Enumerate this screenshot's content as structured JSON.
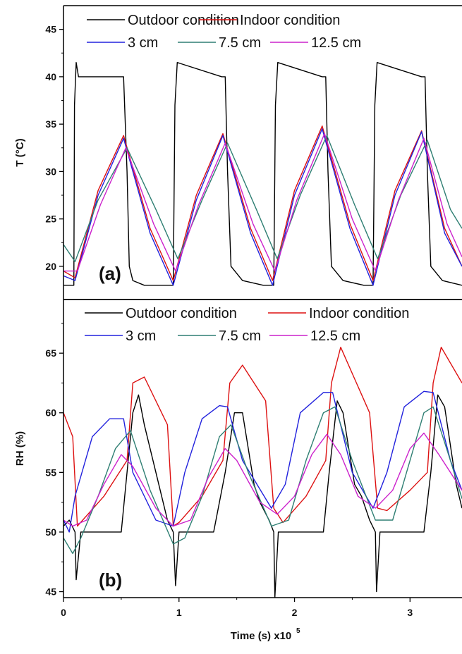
{
  "chart_data": [
    {
      "type": "line",
      "panel_label": "(a)",
      "ylabel": "T (°C)",
      "xlim": [
        0,
        3.45
      ],
      "ylim": [
        16.5,
        47.5
      ],
      "yticks": [
        20,
        25,
        30,
        35,
        40,
        45
      ],
      "ytick_labels": [
        "20",
        "25",
        "30",
        "35",
        "40",
        "45"
      ],
      "legend_placement": "top",
      "series": [
        {
          "name": "Outdoor condition",
          "color": "#000000",
          "x": [
            0,
            0.09,
            0.095,
            0.11,
            0.13,
            0.52,
            0.55,
            0.57,
            0.6,
            0.7,
            0.87,
            0.95,
            0.965,
            0.985,
            1.37,
            1.4,
            1.42,
            1.45,
            1.55,
            1.73,
            1.82,
            1.835,
            1.855,
            2.24,
            2.27,
            2.29,
            2.32,
            2.42,
            2.6,
            2.68,
            2.695,
            2.715,
            3.1,
            3.13,
            3.15,
            3.18,
            3.28,
            3.45
          ],
          "y": [
            18,
            18,
            37,
            41.5,
            40,
            40,
            30,
            20,
            18.5,
            18,
            18,
            18,
            37,
            41.5,
            40,
            40,
            30,
            20,
            18.5,
            18,
            18,
            37,
            41.5,
            40,
            40,
            30,
            20,
            18.5,
            18,
            18,
            37,
            41.5,
            40,
            40,
            30,
            20,
            18.5,
            18
          ]
        },
        {
          "name": "Indoor condition",
          "color": "#dd1111",
          "x": [
            0,
            0.1,
            0.3,
            0.52,
            0.75,
            0.95,
            1.15,
            1.38,
            1.62,
            1.81,
            2.0,
            2.24,
            2.48,
            2.68,
            2.87,
            3.1,
            3.3,
            3.45
          ],
          "y": [
            19.5,
            18.8,
            28,
            33.8,
            24,
            18.5,
            27.5,
            34,
            24,
            18.5,
            28,
            34.8,
            24.5,
            18.5,
            28,
            34.3,
            24,
            20
          ]
        },
        {
          "name": "3 cm",
          "color": "#2222dd",
          "x": [
            0,
            0.1,
            0.3,
            0.52,
            0.75,
            0.95,
            1.15,
            1.38,
            1.62,
            1.81,
            2.0,
            2.24,
            2.48,
            2.68,
            2.87,
            3.1,
            3.3,
            3.45
          ],
          "y": [
            19,
            18.5,
            27.5,
            33.5,
            23.5,
            18,
            27,
            33.8,
            23.5,
            18,
            27.5,
            34.5,
            24,
            18,
            27.5,
            34.2,
            23.5,
            20
          ]
        },
        {
          "name": "7.5 cm",
          "color": "#2f7f73",
          "x": [
            0,
            0.1,
            0.3,
            0.55,
            0.8,
            0.99,
            1.2,
            1.42,
            1.67,
            1.85,
            2.05,
            2.28,
            2.52,
            2.72,
            2.92,
            3.15,
            3.35,
            3.45
          ],
          "y": [
            22.3,
            20.5,
            27,
            32.5,
            26,
            20.8,
            27,
            33,
            26,
            20.8,
            27.5,
            33.8,
            26.5,
            20.8,
            27.5,
            33.3,
            26,
            24
          ]
        },
        {
          "name": "12.5 cm",
          "color": "#cc22cc",
          "x": [
            0,
            0.12,
            0.32,
            0.54,
            0.78,
            0.97,
            1.17,
            1.4,
            1.64,
            1.83,
            2.02,
            2.26,
            2.5,
            2.7,
            2.9,
            3.12,
            3.32,
            3.45
          ],
          "y": [
            19.5,
            19.5,
            26.5,
            32.5,
            24.5,
            19.5,
            26.5,
            33,
            24.5,
            19.5,
            27,
            34,
            25,
            19.5,
            27,
            33.5,
            24.5,
            21
          ]
        }
      ]
    },
    {
      "type": "line",
      "panel_label": "(b)",
      "ylabel": "RH (%)",
      "xlabel": "Time (s) x10",
      "xlabel_exp": "5",
      "xlim": [
        0,
        3.45
      ],
      "xticks": [
        0,
        1,
        2,
        3
      ],
      "xtick_labels": [
        "0",
        "1",
        "2",
        "3"
      ],
      "ylim": [
        44.5,
        69.5
      ],
      "yticks": [
        45,
        50,
        55,
        60,
        65
      ],
      "ytick_labels": [
        "45",
        "50",
        "55",
        "60",
        "65"
      ],
      "legend_placement": "top",
      "series": [
        {
          "name": "Outdoor condition",
          "color": "#000000",
          "x": [
            0,
            0.05,
            0.1,
            0.11,
            0.15,
            0.5,
            0.55,
            0.6,
            0.65,
            0.7,
            0.8,
            0.85,
            0.9,
            0.95,
            0.97,
            1.0,
            1.3,
            1.4,
            1.48,
            1.55,
            1.65,
            1.7,
            1.78,
            1.82,
            1.83,
            1.86,
            2.25,
            2.3,
            2.37,
            2.42,
            2.52,
            2.58,
            2.65,
            2.7,
            2.71,
            2.74,
            3.12,
            3.18,
            3.24,
            3.3,
            3.4,
            3.45
          ],
          "y": [
            50.5,
            51,
            50,
            46,
            50,
            50,
            55,
            60,
            61.5,
            59,
            55,
            53,
            51,
            50,
            45.5,
            50,
            50,
            55,
            60,
            60,
            54,
            52.5,
            51,
            50,
            44.5,
            50,
            50,
            55,
            61,
            60,
            54,
            53,
            51,
            50,
            45,
            50,
            50,
            55,
            61.5,
            60.5,
            54,
            52
          ]
        },
        {
          "name": "Indoor condition",
          "color": "#dd1111",
          "x": [
            0,
            0.08,
            0.12,
            0.35,
            0.55,
            0.6,
            0.7,
            0.9,
            0.95,
            1.0,
            1.2,
            1.38,
            1.44,
            1.55,
            1.75,
            1.82,
            1.9,
            2.1,
            2.27,
            2.32,
            2.4,
            2.65,
            2.72,
            2.8,
            3.0,
            3.15,
            3.2,
            3.27,
            3.45
          ],
          "y": [
            60,
            58,
            50.5,
            53,
            56,
            62.5,
            63,
            59,
            50.5,
            50.8,
            53,
            56,
            62.5,
            64,
            61,
            52,
            50.8,
            53,
            56,
            62.5,
            65.5,
            60,
            52,
            51.8,
            53.5,
            55,
            62.5,
            65.5,
            62.5
          ]
        },
        {
          "name": "3 cm",
          "color": "#2222dd",
          "x": [
            0,
            0.05,
            0.1,
            0.25,
            0.4,
            0.52,
            0.6,
            0.8,
            0.95,
            1.05,
            1.2,
            1.35,
            1.42,
            1.55,
            1.8,
            1.92,
            2.05,
            2.25,
            2.33,
            2.5,
            2.68,
            2.8,
            2.95,
            3.12,
            3.2,
            3.35,
            3.45
          ],
          "y": [
            51,
            50,
            53,
            58,
            59.5,
            59.5,
            55,
            51,
            50.5,
            55,
            59.5,
            60.6,
            60.5,
            56,
            52,
            54,
            60,
            61.7,
            61.7,
            55,
            52,
            55,
            60.5,
            61.8,
            61.7,
            56,
            53.5
          ]
        },
        {
          "name": "7.5 cm",
          "color": "#2f7f73",
          "x": [
            0,
            0.08,
            0.15,
            0.3,
            0.45,
            0.58,
            0.75,
            0.95,
            1.05,
            1.2,
            1.35,
            1.45,
            1.6,
            1.8,
            1.95,
            2.1,
            2.25,
            2.35,
            2.5,
            2.7,
            2.85,
            3.0,
            3.12,
            3.2,
            3.35,
            3.45
          ],
          "y": [
            49.5,
            48.2,
            49.5,
            53,
            57,
            58.5,
            53.5,
            49,
            49.5,
            53,
            58,
            59,
            55,
            50.5,
            51,
            56,
            60,
            60.5,
            56,
            51,
            51,
            56,
            60,
            60.5,
            56,
            52.8
          ]
        },
        {
          "name": "12.5 cm",
          "color": "#cc22cc",
          "x": [
            0,
            0.08,
            0.2,
            0.35,
            0.5,
            0.6,
            0.8,
            0.95,
            1.1,
            1.25,
            1.4,
            1.5,
            1.7,
            1.85,
            2.0,
            2.15,
            2.28,
            2.4,
            2.55,
            2.7,
            2.85,
            3.0,
            3.12,
            3.25,
            3.45
          ],
          "y": [
            51,
            50.5,
            51,
            54,
            56.5,
            55.5,
            52,
            50.5,
            51,
            54.5,
            57,
            56,
            52.5,
            51.5,
            53,
            56.5,
            58.2,
            56.5,
            53,
            52,
            53.5,
            57,
            58.3,
            56.5,
            53.5
          ]
        }
      ]
    }
  ]
}
